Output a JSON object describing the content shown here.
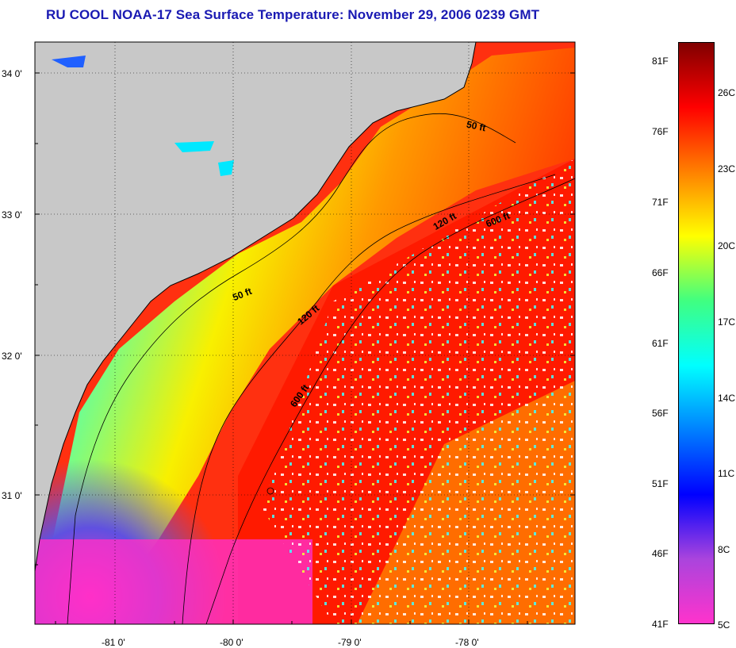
{
  "title": "RU COOL  NOAA-17  Sea Surface Temperature:  November 29, 2006 0239 GMT",
  "map": {
    "lat_labels": [
      "34 0'",
      "33 0'",
      "32 0'",
      "31 0'"
    ],
    "lon_labels": [
      "-81 0'",
      "-80 0'",
      "-79 0'",
      "-78 0'"
    ],
    "contour_labels": [
      "50 ft",
      "120 ft",
      "600 ft",
      "50 ft",
      "120 ft",
      "600 ft"
    ],
    "colors": {
      "land": "#c8c8c8",
      "frame": "#000000"
    }
  },
  "colorbar": {
    "fahrenheit_labels": [
      "81F",
      "76F",
      "71F",
      "66F",
      "61F",
      "56F",
      "51F",
      "46F",
      "41F"
    ],
    "celsius_labels": [
      "26C",
      "23C",
      "20C",
      "17C",
      "14C",
      "11C",
      "8C",
      "5C"
    ],
    "range_celsius": [
      5,
      27.2
    ],
    "stops": [
      "#ff33cc",
      "#aa44dd",
      "#0000ff",
      "#0080ff",
      "#00ffff",
      "#40ff80",
      "#ffff00",
      "#ff8000",
      "#ff0000",
      "#800000"
    ]
  }
}
